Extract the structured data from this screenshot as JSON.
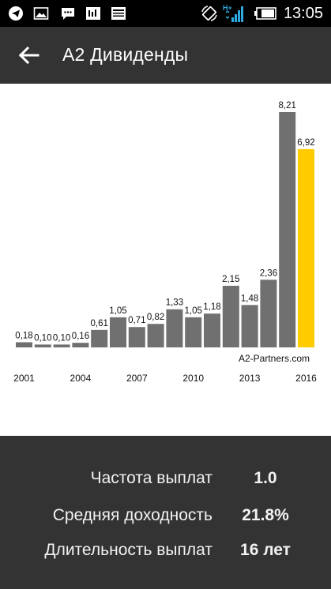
{
  "status_bar": {
    "time": "13:05",
    "network_label": "H+",
    "icons": [
      "telegram-icon",
      "gallery-icon",
      "chat-icon",
      "invest-app-icon",
      "news-app-icon",
      "rotate-icon",
      "signal-icon",
      "battery-icon"
    ]
  },
  "header": {
    "title": "A2 Дивиденды",
    "back_icon": "arrow-left-icon"
  },
  "chart_data": {
    "type": "bar",
    "title": "",
    "xlabel": "",
    "ylabel": "",
    "categories": [
      "2001",
      "2002",
      "2003",
      "2004",
      "2005",
      "2006",
      "2007",
      "2008",
      "2009",
      "2010",
      "2011",
      "2012",
      "2013",
      "2014",
      "2015",
      "2016"
    ],
    "values": [
      0.18,
      0.1,
      0.1,
      0.16,
      0.61,
      1.05,
      0.71,
      0.82,
      1.33,
      1.05,
      1.18,
      2.15,
      1.48,
      2.36,
      8.21,
      6.92
    ],
    "value_labels": [
      "0,18",
      "0,10",
      "0,10",
      "0,16",
      "0,61",
      "1,05",
      "0,71",
      "0,82",
      "1,33",
      "1,05",
      "1,18",
      "2,15",
      "1,48",
      "2,36",
      "8,21",
      "6,92"
    ],
    "x_tick_labels": [
      "2001",
      "2004",
      "2007",
      "2010",
      "2013",
      "2016"
    ],
    "ylim": [
      0,
      8.21
    ],
    "highlight_index": 15,
    "colors": {
      "bar": "#707070",
      "highlight": "#ffcc00"
    },
    "watermark": "A2-Partners.com"
  },
  "stats": [
    {
      "label": "Частота выплат",
      "value": "1.0"
    },
    {
      "label": "Средняя доходность",
      "value": "21.8%"
    },
    {
      "label": "Длительность выплат",
      "value": "16 лет"
    }
  ]
}
